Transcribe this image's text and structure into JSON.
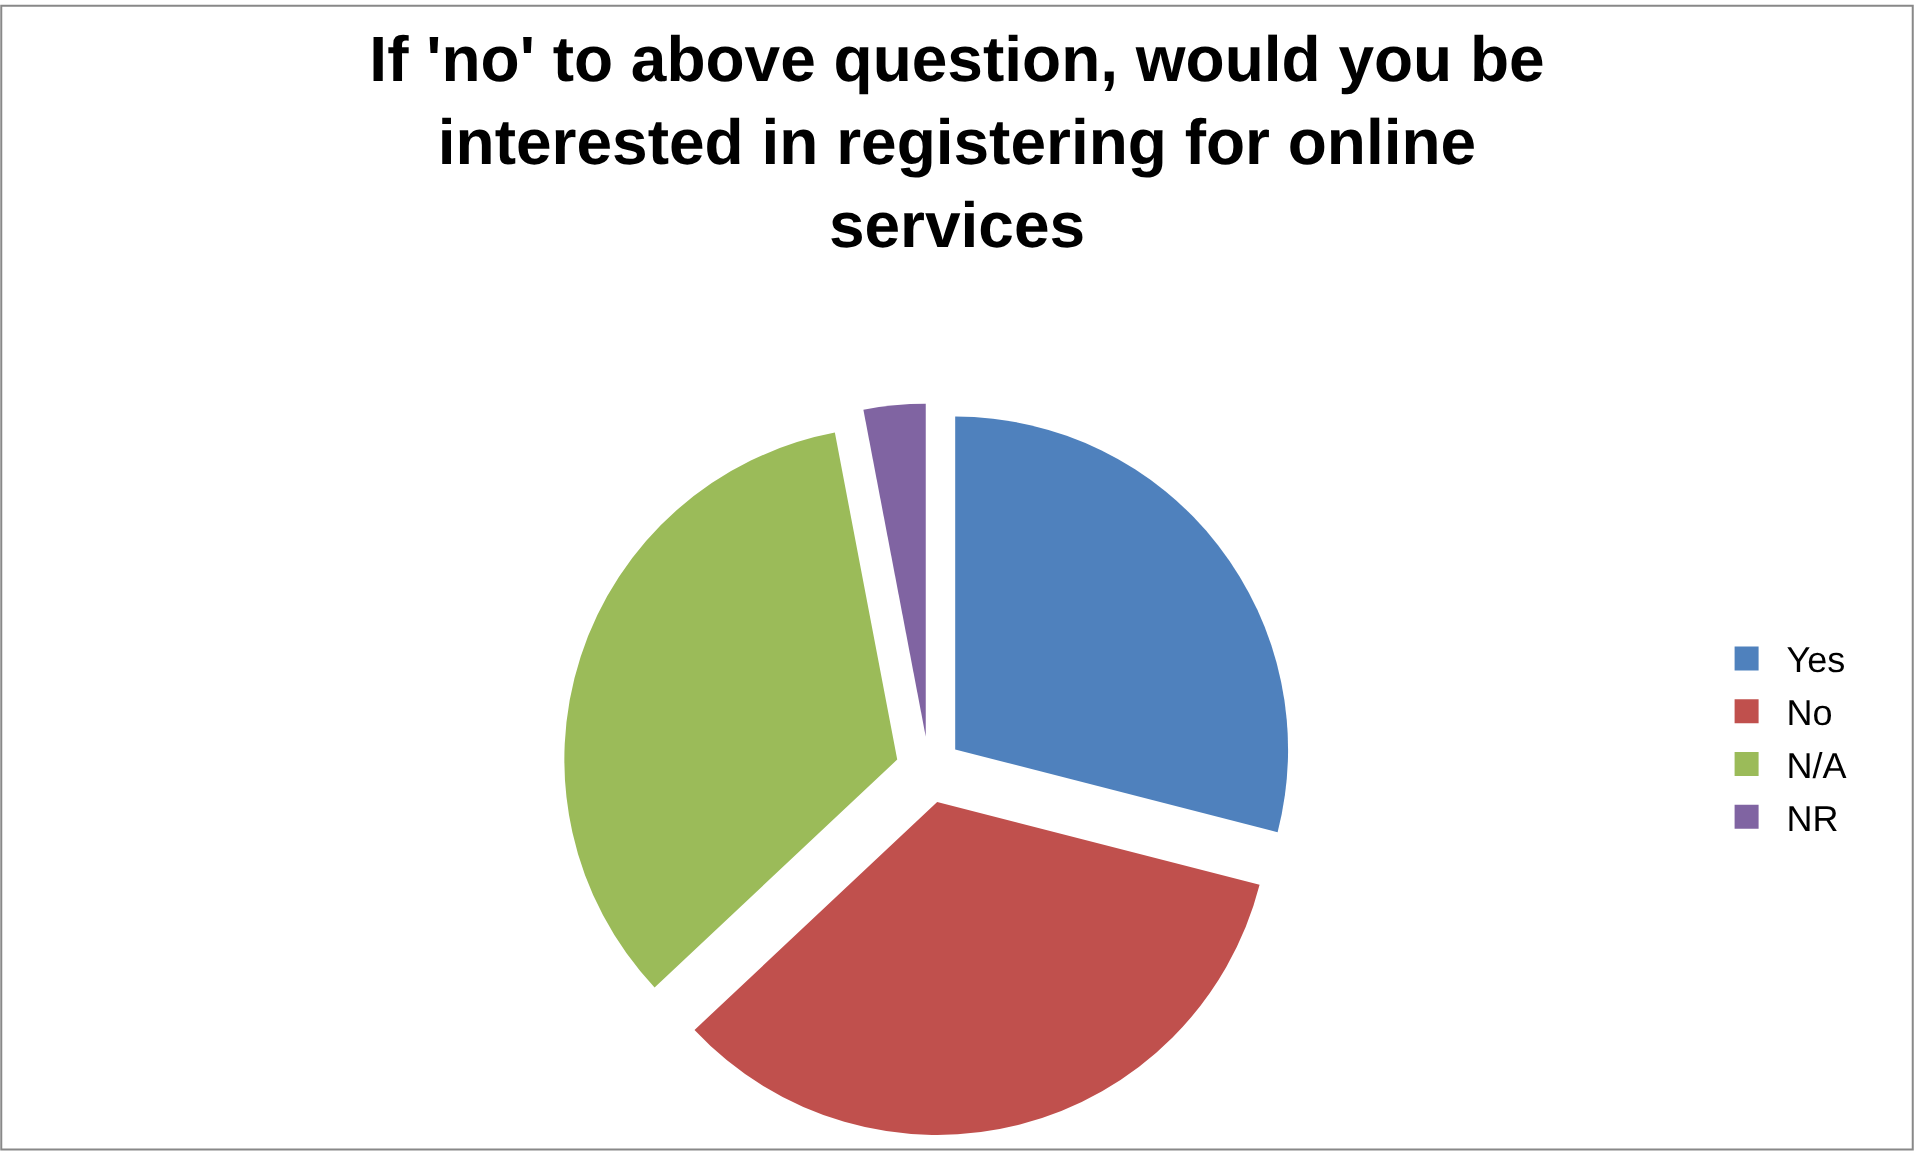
{
  "chart_data": {
    "type": "pie",
    "title": "If 'no' to above question, would you be interested in registering for online services",
    "categories": [
      "Yes",
      "No",
      "N/A",
      "NR"
    ],
    "values": [
      29,
      34,
      34,
      3
    ],
    "colors": [
      "#4f81bd",
      "#c0504d",
      "#9bbb59",
      "#8064a2"
    ],
    "legend": "right"
  }
}
